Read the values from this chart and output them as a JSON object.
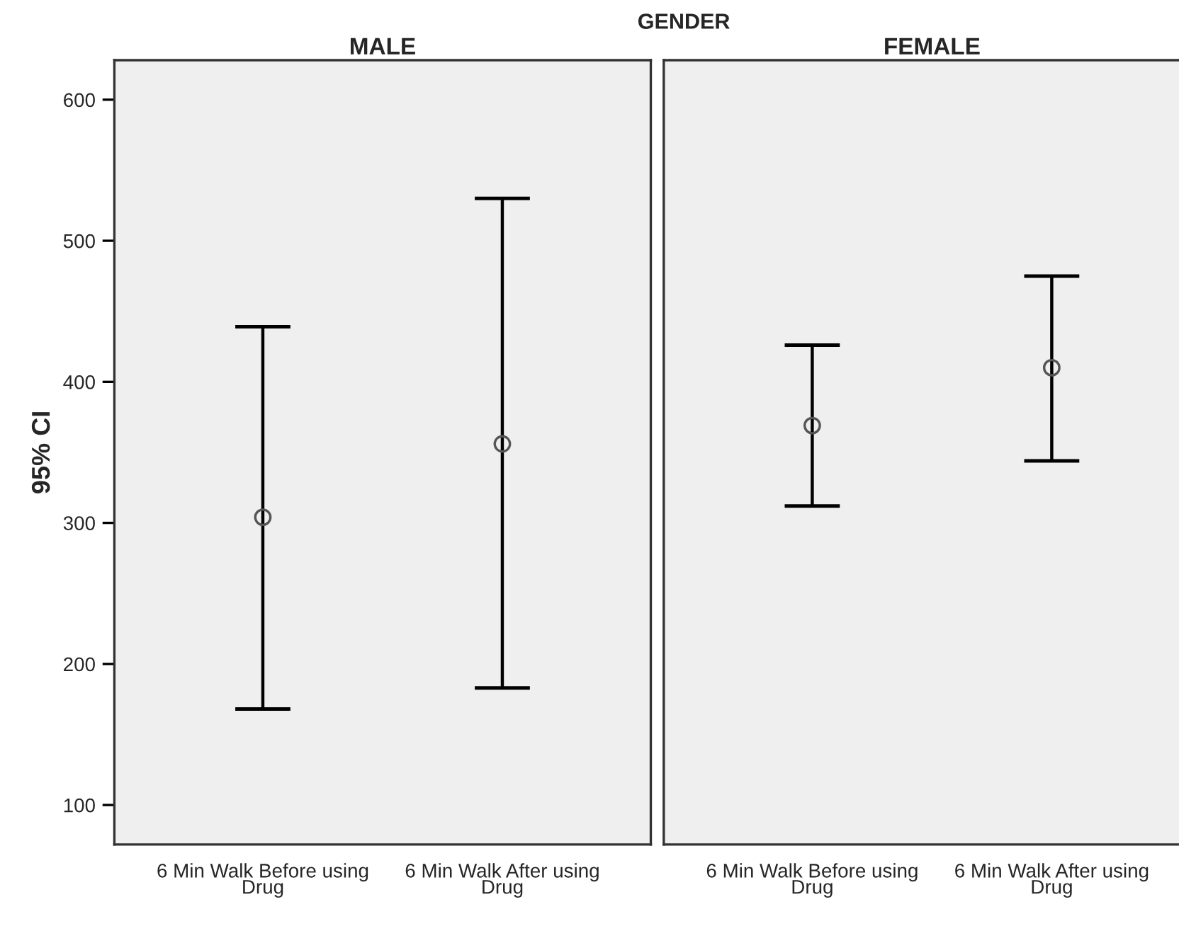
{
  "chart_data": [
    {
      "type": "scatter",
      "title": "MALE",
      "ylabel": "95% CI",
      "annotations": [
        "GENDER"
      ],
      "categories": [
        "6 Min Walk Before using Drug",
        "6 Min Walk After using Drug"
      ],
      "values": [
        304,
        356
      ],
      "errors": [
        [
          168,
          439
        ],
        [
          183,
          530
        ]
      ],
      "color": "#555555",
      "marker": "circle",
      "ylim": [
        72,
        628
      ],
      "yticks": [
        100,
        200,
        300,
        400,
        500,
        600
      ],
      "grid": false
    },
    {
      "type": "scatter",
      "title": "FEMALE",
      "categories": [
        "6 Min Walk Before using Drug",
        "6 Min Walk After using Drug"
      ],
      "values": [
        369,
        410
      ],
      "errors": [
        [
          312,
          426
        ],
        [
          344,
          475
        ]
      ],
      "color": "#555555",
      "marker": "circle",
      "ylim": [
        72,
        628
      ],
      "yticks": [
        100,
        200,
        300,
        400,
        500,
        600
      ],
      "tick_labels": "x",
      "grid": false
    }
  ]
}
